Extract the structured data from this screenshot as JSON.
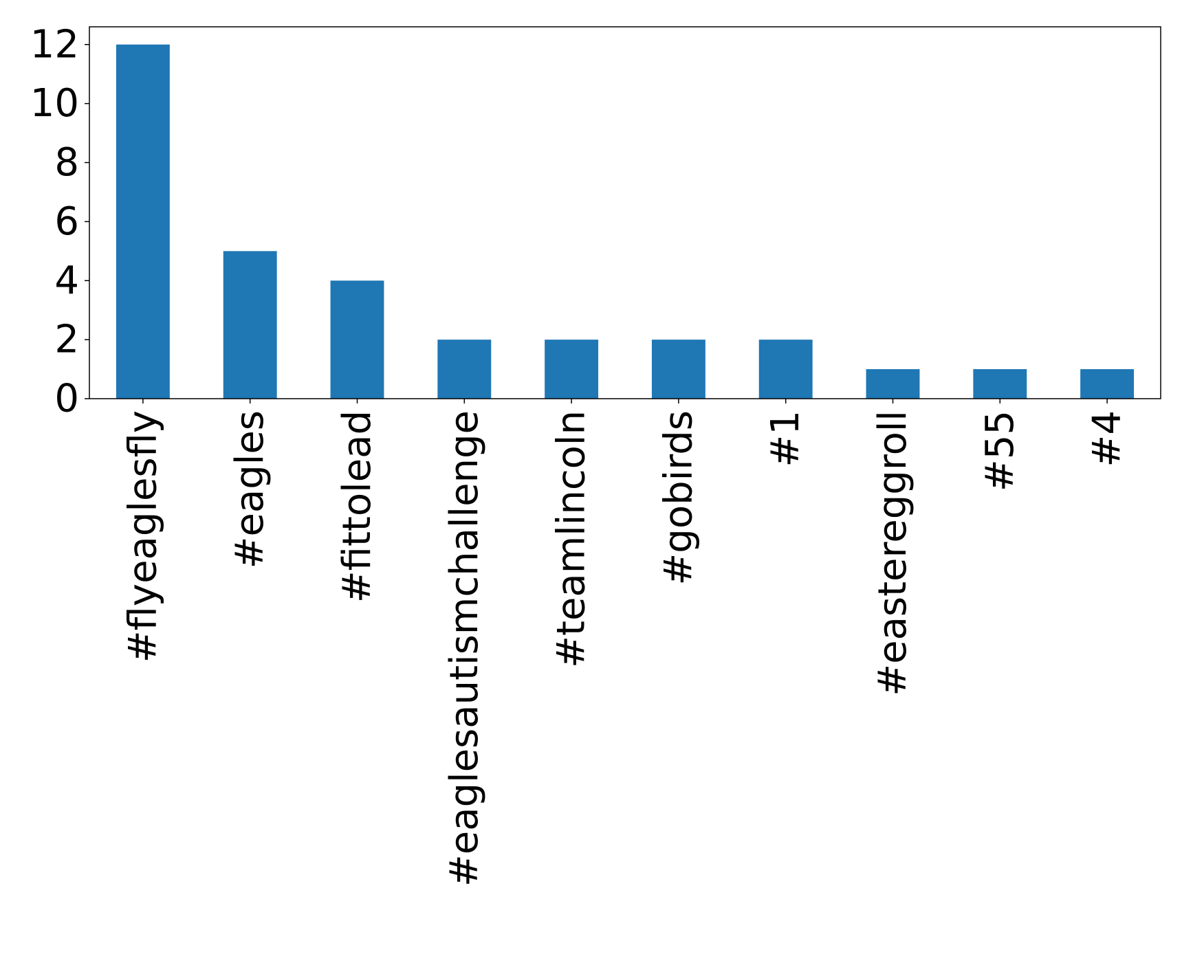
{
  "chart_data": {
    "type": "bar",
    "title": "",
    "xlabel": "",
    "ylabel": "",
    "categories": [
      "#flyeaglesfly",
      "#eagles",
      "#fittolead",
      "#eaglesautismchallenge",
      "#teamlincoln",
      "#gobirds",
      "#1",
      "#eastereggroll",
      "#55",
      "#4"
    ],
    "values": [
      12,
      5,
      4,
      2,
      2,
      2,
      2,
      1,
      1,
      1
    ],
    "ylim": [
      0,
      12.6
    ],
    "yticks": [
      0,
      2,
      4,
      6,
      8,
      10,
      12
    ],
    "grid": false,
    "legend": "none",
    "bar_color": "#1f77b4",
    "axis_color": "#000000"
  }
}
